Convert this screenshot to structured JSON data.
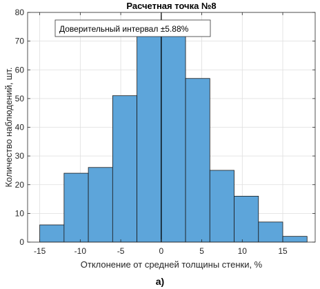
{
  "chart_data": {
    "type": "bar",
    "title": "Расчетная точка №8",
    "xlabel": "Отклонение от средней толщины стенки, %",
    "ylabel": "Количество наблюдений, шт.",
    "xlim": [
      -16.5,
      19
    ],
    "ylim": [
      0,
      80
    ],
    "xticks": [
      -15,
      -10,
      -5,
      0,
      5,
      10,
      15
    ],
    "xtick_labels": [
      "-15",
      "-10",
      "-5",
      "0",
      "5",
      "10",
      "15"
    ],
    "yticks": [
      0,
      10,
      20,
      30,
      40,
      50,
      60,
      70,
      80
    ],
    "ytick_labels": [
      "0",
      "10",
      "20",
      "30",
      "40",
      "50",
      "60",
      "70",
      "80"
    ],
    "grid": true,
    "bins": [
      {
        "x0": -15.0,
        "x1": -12.0,
        "count": 6
      },
      {
        "x0": -12.0,
        "x1": -9.0,
        "count": 24
      },
      {
        "x0": -9.0,
        "x1": -6.0,
        "count": 26
      },
      {
        "x0": -6.0,
        "x1": -3.0,
        "count": 51
      },
      {
        "x0": -3.0,
        "x1": 0.0,
        "count": 72
      },
      {
        "x0": 0.0,
        "x1": 3.0,
        "count": 74
      },
      {
        "x0": 3.0,
        "x1": 6.0,
        "count": 57
      },
      {
        "x0": 6.0,
        "x1": 9.0,
        "count": 25
      },
      {
        "x0": 9.0,
        "x1": 12.0,
        "count": 16
      },
      {
        "x0": 12.0,
        "x1": 15.0,
        "count": 7
      },
      {
        "x0": 15.0,
        "x1": 18.0,
        "count": 2
      }
    ],
    "annotation": "Доверительный интервал ±5.88%",
    "bar_color": "#5DA5DA",
    "bar_edge_color": "#1a1a1a",
    "reference_line_x": 0
  },
  "caption": "а)"
}
